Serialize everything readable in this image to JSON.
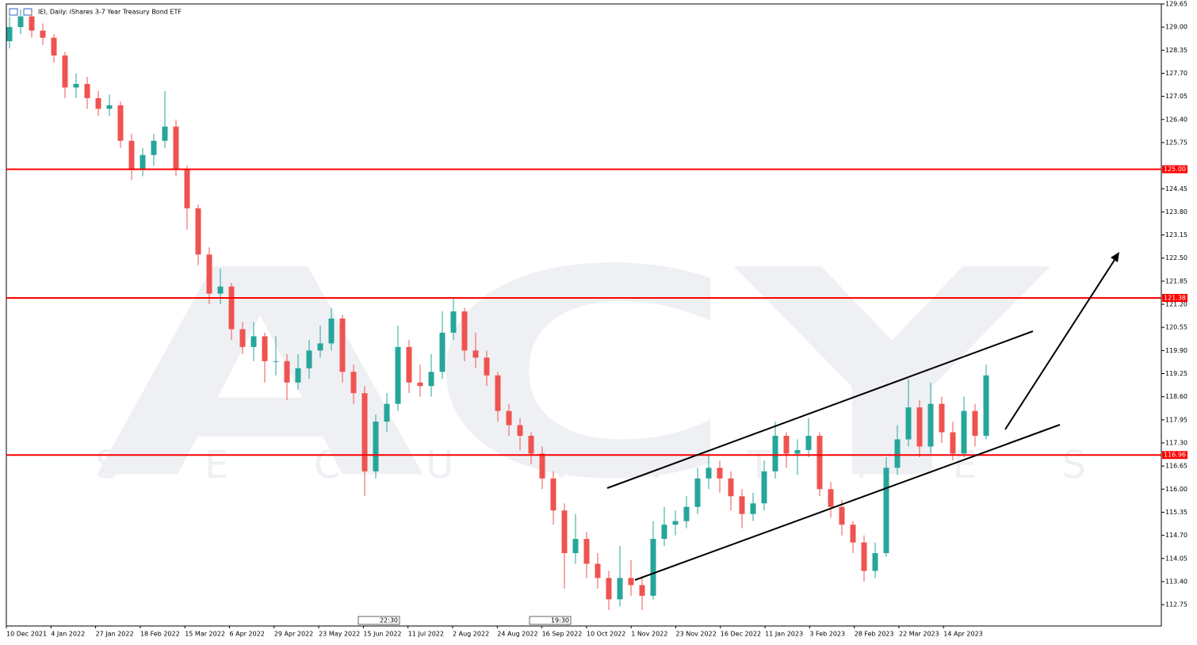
{
  "chart_data": {
    "type": "candlestick",
    "title": "IEI, Daily:  iShares 3-7 Year Treasury Bond ETF",
    "watermark": [
      "ACY",
      "S E C U R I T I E S"
    ],
    "up_color": "#26a69a",
    "down_color": "#ef5350",
    "line_color": "#ff0000",
    "ylim": [
      112.15,
      129.65
    ],
    "yticks": [
      129.65,
      {
        "value": 129,
        "label": "129.00"
      },
      128.35,
      {
        "value": 127.7,
        "label": "127.70"
      },
      127.05,
      {
        "value": 126.4,
        "label": "126.40"
      },
      125.75,
      124.45,
      {
        "value": 123.8,
        "label": "123.80"
      },
      123.15,
      {
        "value": 122.5,
        "label": "122.50"
      },
      121.85,
      {
        "value": 121.2,
        "label": "121.20"
      },
      120.55,
      {
        "value": 119.9,
        "label": "119.90"
      },
      119.25,
      {
        "value": 118.6,
        "label": "118.60"
      },
      117.95,
      {
        "value": 117.3,
        "label": "117.30"
      },
      116.65,
      {
        "value": 116,
        "label": "116.00"
      },
      115.35,
      {
        "value": 114.7,
        "label": "114.70"
      },
      114.05,
      {
        "value": 113.4,
        "label": "113.40"
      },
      112.75
    ],
    "hlines": [
      {
        "value": 125,
        "label": "125.00"
      },
      121.38,
      116.96
    ],
    "xtick_labels": [
      "10 Dec 2021",
      "4 Jan 2022",
      "27 Jan 2022",
      "18 Feb 2022",
      "15 Mar 2022",
      "6 Apr 2022",
      "29 Apr 2022",
      "23 May 2022",
      "15 Jun 2022",
      "11 Jul 2022",
      "2 Aug 2022",
      "24 Aug 2022",
      "16 Sep 2022",
      "10 Oct 2022",
      "1 Nov 2022",
      "23 Nov 2022",
      "16 Dec 2022",
      "11 Jan 2023",
      "3 Feb 2023",
      "28 Feb 2023",
      "22 Mar 2023",
      "14 Apr 2023"
    ],
    "time_markers": [
      "22:30",
      "19:30"
    ],
    "ohlc": [
      [
        128.6,
        129.3,
        128.4,
        129.0
      ],
      [
        129.0,
        129.5,
        128.8,
        129.3
      ],
      [
        129.3,
        129.4,
        128.7,
        128.9
      ],
      [
        128.9,
        129.1,
        128.5,
        128.7
      ],
      [
        128.7,
        128.8,
        128.0,
        128.2
      ],
      [
        128.2,
        128.3,
        127.0,
        127.3
      ],
      [
        127.3,
        127.7,
        127.0,
        127.4
      ],
      [
        127.4,
        127.6,
        126.7,
        127.0
      ],
      [
        127.0,
        127.2,
        126.5,
        126.7
      ],
      [
        126.7,
        127.1,
        126.5,
        126.8
      ],
      [
        126.8,
        126.9,
        125.6,
        125.8
      ],
      [
        125.8,
        126.0,
        124.7,
        125.0
      ],
      [
        125.0,
        125.6,
        124.8,
        125.4
      ],
      [
        125.4,
        126.0,
        125.1,
        125.8
      ],
      [
        125.8,
        127.2,
        125.6,
        126.2
      ],
      [
        126.2,
        126.4,
        124.8,
        125.0
      ],
      [
        125.0,
        125.1,
        123.3,
        123.9
      ],
      [
        123.9,
        124.0,
        122.3,
        122.6
      ],
      [
        122.6,
        122.8,
        121.2,
        121.5
      ],
      [
        121.5,
        122.2,
        121.2,
        121.7
      ],
      [
        121.7,
        121.8,
        120.2,
        120.5
      ],
      [
        120.5,
        120.7,
        119.8,
        120.0
      ],
      [
        120.0,
        120.7,
        119.6,
        120.3
      ],
      [
        120.3,
        120.4,
        119.0,
        119.6
      ],
      [
        119.6,
        120.3,
        119.2,
        119.6
      ],
      [
        119.6,
        119.8,
        118.5,
        119.0
      ],
      [
        119.0,
        119.8,
        118.8,
        119.4
      ],
      [
        119.4,
        120.2,
        119.1,
        119.9
      ],
      [
        119.9,
        120.6,
        119.7,
        120.1
      ],
      [
        120.1,
        121.1,
        119.9,
        120.8
      ],
      [
        120.8,
        120.9,
        119.0,
        119.3
      ],
      [
        119.3,
        119.5,
        118.4,
        118.7
      ],
      [
        118.7,
        118.9,
        115.8,
        116.5
      ],
      [
        116.5,
        118.1,
        116.3,
        117.9
      ],
      [
        117.9,
        118.7,
        117.6,
        118.4
      ],
      [
        118.4,
        120.6,
        118.2,
        120.0
      ],
      [
        120.0,
        120.2,
        118.7,
        119.0
      ],
      [
        119.0,
        119.5,
        118.6,
        118.9
      ],
      [
        118.9,
        119.8,
        118.6,
        119.3
      ],
      [
        119.3,
        121.0,
        119.1,
        120.4
      ],
      [
        120.4,
        121.4,
        120.2,
        121.0
      ],
      [
        121.0,
        121.1,
        119.6,
        119.9
      ],
      [
        119.9,
        120.4,
        119.4,
        119.7
      ],
      [
        119.7,
        119.9,
        118.9,
        119.2
      ],
      [
        119.2,
        119.3,
        117.9,
        118.2
      ],
      [
        118.2,
        118.4,
        117.5,
        117.8
      ],
      [
        117.8,
        118.0,
        117.1,
        117.5
      ],
      [
        117.5,
        117.6,
        116.7,
        117.0
      ],
      [
        117.0,
        117.2,
        116.0,
        116.3
      ],
      [
        116.3,
        116.5,
        115.0,
        115.4
      ],
      [
        115.4,
        115.6,
        113.2,
        114.2
      ],
      [
        114.2,
        115.3,
        113.9,
        114.6
      ],
      [
        114.6,
        114.8,
        113.5,
        113.9
      ],
      [
        113.9,
        114.2,
        113.2,
        113.5
      ],
      [
        113.5,
        113.7,
        112.6,
        112.9
      ],
      [
        112.9,
        114.4,
        112.7,
        113.5
      ],
      [
        113.5,
        114.0,
        113.0,
        113.3
      ],
      [
        113.3,
        113.5,
        112.6,
        113.0
      ],
      [
        113.0,
        115.1,
        112.9,
        114.6
      ],
      [
        114.6,
        115.5,
        114.4,
        115.0
      ],
      [
        115.0,
        115.4,
        114.7,
        115.1
      ],
      [
        115.1,
        115.8,
        114.9,
        115.5
      ],
      [
        115.5,
        116.6,
        115.3,
        116.3
      ],
      [
        116.3,
        117.0,
        116.0,
        116.6
      ],
      [
        116.6,
        116.8,
        115.9,
        116.3
      ],
      [
        116.3,
        116.5,
        115.4,
        115.8
      ],
      [
        115.8,
        116.0,
        114.9,
        115.3
      ],
      [
        115.3,
        115.9,
        115.1,
        115.6
      ],
      [
        115.6,
        116.8,
        115.4,
        116.5
      ],
      [
        116.5,
        117.9,
        116.3,
        117.5
      ],
      [
        117.5,
        117.6,
        116.6,
        117.0
      ],
      [
        117.0,
        117.4,
        116.4,
        117.1
      ],
      [
        117.1,
        118.0,
        116.9,
        117.5
      ],
      [
        117.5,
        117.6,
        115.8,
        116.0
      ],
      [
        116.0,
        116.2,
        115.2,
        115.5
      ],
      [
        115.5,
        115.7,
        114.7,
        115.0
      ],
      [
        115.0,
        115.1,
        114.2,
        114.5
      ],
      [
        114.5,
        114.7,
        113.4,
        113.7
      ],
      [
        113.7,
        114.5,
        113.5,
        114.2
      ],
      [
        114.2,
        116.9,
        114.1,
        116.6
      ],
      [
        116.6,
        117.8,
        116.4,
        117.4
      ],
      [
        117.4,
        119.1,
        117.2,
        118.3
      ],
      [
        118.3,
        118.5,
        116.9,
        117.2
      ],
      [
        117.2,
        119.0,
        117.0,
        118.4
      ],
      [
        118.4,
        118.6,
        117.3,
        117.6
      ],
      [
        117.6,
        117.9,
        116.8,
        117.0
      ],
      [
        117.0,
        118.6,
        116.9,
        118.2
      ],
      [
        118.2,
        118.4,
        117.2,
        117.5
      ],
      [
        117.5,
        119.5,
        117.4,
        119.2
      ]
    ]
  }
}
